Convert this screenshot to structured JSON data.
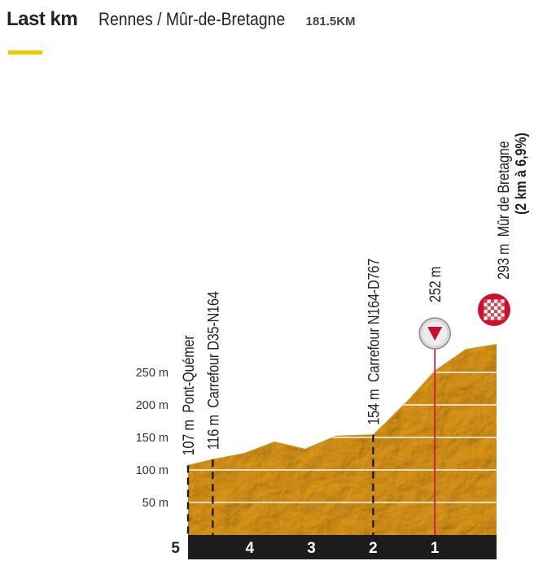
{
  "header": {
    "title": "Last km",
    "route": "Rennes / Mûr-de-Bretagne",
    "distance": "181.5KM"
  },
  "colors": {
    "fill": "#e8b93c",
    "fill_light": "#f1cf6a",
    "accent": "#f5c400",
    "km_bar": "#1c1c1c",
    "marker_line": "#c8102e",
    "finish_red": "#d0102a"
  },
  "chart_data": {
    "type": "area",
    "title": "",
    "xlabel": "",
    "ylabel": "",
    "x_unit": "km to go",
    "xlim": [
      5,
      0
    ],
    "ylim": [
      0,
      300
    ],
    "y_ticks": [
      {
        "value": 50,
        "label": "50 m"
      },
      {
        "value": 100,
        "label": "100 m"
      },
      {
        "value": 150,
        "label": "150 m"
      },
      {
        "value": 200,
        "label": "200 m"
      },
      {
        "value": 250,
        "label": "250 m"
      }
    ],
    "km_marks": [
      {
        "km": 5,
        "label": "5"
      },
      {
        "km": 4,
        "label": "4"
      },
      {
        "km": 3,
        "label": "3"
      },
      {
        "km": 2,
        "label": "2"
      },
      {
        "km": 1,
        "label": "1"
      }
    ],
    "profile": [
      {
        "x": 5.0,
        "y": 107
      },
      {
        "x": 4.6,
        "y": 116
      },
      {
        "x": 4.1,
        "y": 125
      },
      {
        "x": 3.6,
        "y": 143
      },
      {
        "x": 3.1,
        "y": 132
      },
      {
        "x": 2.6,
        "y": 152
      },
      {
        "x": 2.0,
        "y": 154
      },
      {
        "x": 1.8,
        "y": 172
      },
      {
        "x": 1.4,
        "y": 210
      },
      {
        "x": 1.0,
        "y": 252
      },
      {
        "x": 0.5,
        "y": 285
      },
      {
        "x": 0.0,
        "y": 293
      }
    ],
    "points": [
      {
        "km": 5.0,
        "elev": 107,
        "elev_label": "107 m",
        "name": "Pont-Quémer",
        "line": "dashed"
      },
      {
        "km": 4.6,
        "elev": 116,
        "elev_label": "116 m",
        "name": "Carrefour D35-N164",
        "line": "dashed"
      },
      {
        "km": 2.0,
        "elev": 154,
        "elev_label": "154 m",
        "name": "Carrefour N164-D767",
        "line": "dashed"
      },
      {
        "km": 1.0,
        "elev": 252,
        "elev_label": "252 m",
        "name": "",
        "line": "red-flamme-rouge"
      },
      {
        "km": 0.0,
        "elev": 293,
        "elev_label": "293 m",
        "name": "Mûr de Bretagne",
        "note": "(2 km à 6,9%)",
        "line": "finish"
      }
    ]
  }
}
